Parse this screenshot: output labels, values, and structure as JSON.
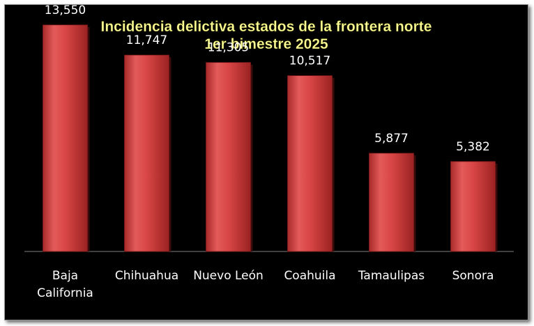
{
  "chart_data": {
    "type": "bar",
    "title": "Incidencia delictiva estados de la frontera norte",
    "subtitle": "1er bimestre 2025",
    "categories": [
      [
        "Baja",
        "California"
      ],
      [
        "Chihuahua"
      ],
      [
        "Nuevo León"
      ],
      [
        "Coahuila"
      ],
      [
        "Tamaulipas"
      ],
      [
        "Sonora"
      ]
    ],
    "values": [
      13550,
      11747,
      11305,
      10517,
      5877,
      5382
    ],
    "value_labels": [
      "13,550",
      "11,747",
      "11,305",
      "10,517",
      "5,877",
      "5,382"
    ],
    "xlabel": "",
    "ylabel": "",
    "ylim": [
      0,
      14000
    ],
    "grid": false,
    "legend": "none",
    "colors": {
      "bar": "#d94646",
      "bar_dark": "#8e1f1f",
      "bar_light": "#f07a7a",
      "background": "#000000",
      "title": "#ffff99",
      "text": "#ffffff"
    }
  }
}
